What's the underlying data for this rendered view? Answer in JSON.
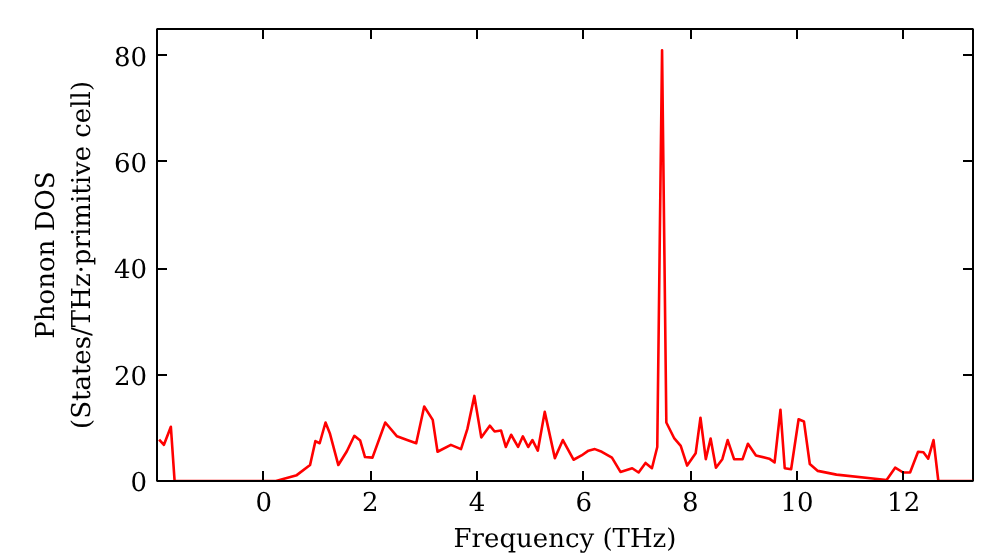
{
  "chart_data": {
    "type": "line",
    "xlabel": "Frequency (THz)",
    "ylabel": "Phonon DOS\n(States/THz·primitive cell)",
    "xlim": [
      -2,
      13.3
    ],
    "ylim": [
      0,
      85
    ],
    "xticks": [
      0,
      2,
      4,
      6,
      8,
      10,
      12
    ],
    "yticks": [
      0,
      20,
      40,
      60,
      80
    ],
    "grid": false,
    "series": [
      {
        "color": "#ff0000",
        "x": [
          -1.96,
          -1.87,
          -1.74,
          -1.67,
          0.0,
          0.23,
          0.62,
          0.87,
          0.97,
          1.05,
          1.16,
          1.24,
          1.4,
          1.56,
          1.7,
          1.81,
          1.9,
          2.04,
          2.28,
          2.5,
          2.69,
          2.86,
          3.01,
          3.17,
          3.26,
          3.51,
          3.7,
          3.82,
          3.95,
          4.08,
          4.24,
          4.33,
          4.45,
          4.54,
          4.64,
          4.77,
          4.86,
          4.96,
          5.04,
          5.14,
          5.27,
          5.46,
          5.61,
          5.81,
          5.96,
          6.09,
          6.21,
          6.34,
          6.53,
          6.69,
          6.91,
          7.03,
          7.16,
          7.28,
          7.38,
          7.47,
          7.55,
          7.7,
          7.82,
          7.94,
          8.1,
          8.19,
          8.29,
          8.38,
          8.48,
          8.6,
          8.7,
          8.82,
          8.98,
          9.08,
          9.23,
          9.48,
          9.58,
          9.69,
          9.77,
          9.89,
          10.03,
          10.13,
          10.24,
          10.39,
          10.74,
          11.68,
          11.84,
          11.99,
          12.12,
          12.27,
          12.37,
          12.46,
          12.56,
          12.65,
          13.3
        ],
        "values": [
          7.8,
          6.8,
          10.2,
          0,
          0,
          0,
          1.1,
          3,
          7.5,
          7.1,
          11,
          9,
          3,
          5.6,
          8.5,
          7.6,
          4.5,
          4.4,
          11,
          8.4,
          7.7,
          7.1,
          14,
          11.5,
          5.5,
          6.8,
          6,
          9.8,
          16,
          8.2,
          10.4,
          9.3,
          9.5,
          6.4,
          8.7,
          6.4,
          8.4,
          6.4,
          7.7,
          5.7,
          13,
          4.3,
          7.7,
          4,
          4.8,
          5.7,
          6,
          5.5,
          4.4,
          1.7,
          2.4,
          1.6,
          3.4,
          2.4,
          6.4,
          81,
          11,
          8,
          6.6,
          2.9,
          5.2,
          11.9,
          4.1,
          8,
          2.5,
          4.1,
          7.7,
          4.1,
          4.1,
          7,
          4.8,
          4.2,
          3.5,
          13.4,
          2.4,
          2.2,
          11.6,
          11.2,
          3.2,
          1.9,
          1.2,
          0.2,
          2.5,
          1.6,
          1.6,
          5.5,
          5.4,
          4.2,
          7.7,
          0,
          0
        ]
      }
    ]
  }
}
